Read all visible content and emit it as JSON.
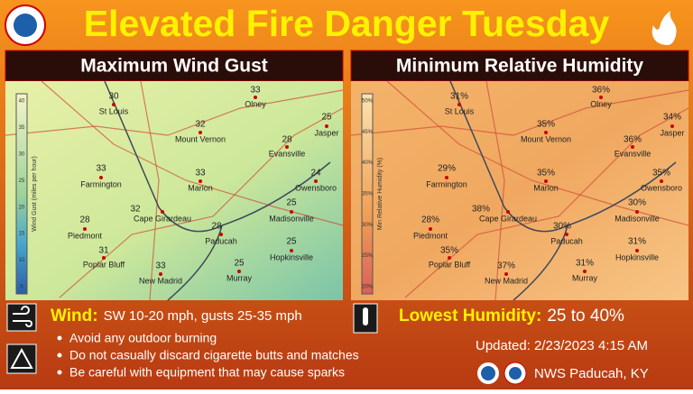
{
  "header": {
    "title": "Elevated Fire Danger Tuesday"
  },
  "panels": [
    {
      "title": "Maximum Wind Gust",
      "legend_label": "Wind Gust (miles per hour)",
      "legend_ticks": [
        "40",
        "35",
        "30",
        "25",
        "20",
        "15",
        "10",
        "5"
      ],
      "places": [
        {
          "name": "St Louis",
          "value": "30"
        },
        {
          "name": "Olney",
          "value": "33"
        },
        {
          "name": "Mount Vernon",
          "value": "32"
        },
        {
          "name": "Evansville",
          "value": "28"
        },
        {
          "name": "Jasper",
          "value": "25"
        },
        {
          "name": "Farmington",
          "value": "33"
        },
        {
          "name": "Marion",
          "value": "33"
        },
        {
          "name": "Owensboro",
          "value": "24"
        },
        {
          "name": "Cape Girardeau",
          "value": "32"
        },
        {
          "name": "Madisonville",
          "value": "25"
        },
        {
          "name": "Piedmont",
          "value": "28"
        },
        {
          "name": "Paducah",
          "value": "28"
        },
        {
          "name": "Hopkinsville",
          "value": "25"
        },
        {
          "name": "Poplar Bluff",
          "value": "31"
        },
        {
          "name": "New Madrid",
          "value": "33"
        },
        {
          "name": "Murray",
          "value": "25"
        }
      ]
    },
    {
      "title": "Minimum Relative Humidity",
      "legend_label": "Min Relative Humidity (%)",
      "legend_ticks": [
        "50%",
        "45%",
        "40%",
        "35%",
        "30%",
        "25%",
        "20%"
      ],
      "places": [
        {
          "name": "St Louis",
          "value": "31%"
        },
        {
          "name": "Olney",
          "value": "36%"
        },
        {
          "name": "Mount Vernon",
          "value": "35%"
        },
        {
          "name": "Evansville",
          "value": "36%"
        },
        {
          "name": "Jasper",
          "value": "34%"
        },
        {
          "name": "Farmington",
          "value": "29%"
        },
        {
          "name": "Marion",
          "value": "35%"
        },
        {
          "name": "Owensboro",
          "value": "35%"
        },
        {
          "name": "Cape Girardeau",
          "value": "38%"
        },
        {
          "name": "Madisonville",
          "value": "30%"
        },
        {
          "name": "Piedmont",
          "value": "28%"
        },
        {
          "name": "Paducah",
          "value": "30%"
        },
        {
          "name": "Hopkinsville",
          "value": "31%"
        },
        {
          "name": "Poplar Bluff",
          "value": "35%"
        },
        {
          "name": "New Madrid",
          "value": "37%"
        },
        {
          "name": "Murray",
          "value": "31%"
        }
      ]
    }
  ],
  "wind": {
    "label": "Wind:",
    "text": "SW 10-20 mph, gusts 25-35 mph"
  },
  "humidity": {
    "label": "Lowest Humidity:",
    "text": "25 to 40%"
  },
  "bullets": [
    "Avoid any outdoor burning",
    "Do not casually discard cigarette butts and matches",
    "Be careful with equipment that may cause sparks"
  ],
  "updated": "Updated: 2/23/2023 4:15 AM",
  "office": "NWS Paducah, KY"
}
